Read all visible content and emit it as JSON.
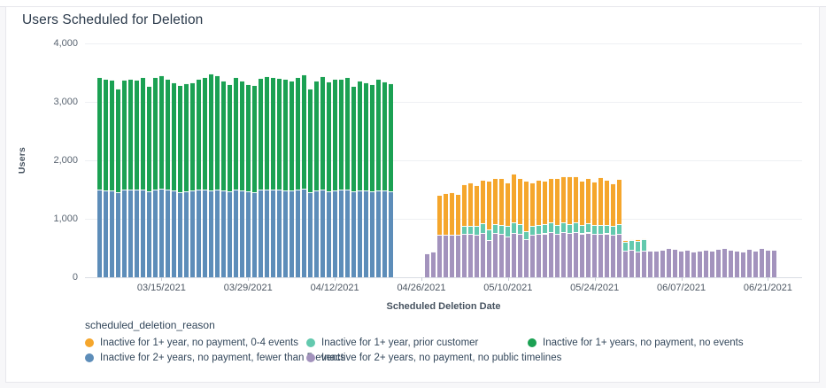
{
  "chart_data": {
    "type": "bar",
    "stacked": true,
    "title": "Users Scheduled for Deletion",
    "xlabel": "Scheduled Deletion Date",
    "ylabel": "Users",
    "legend_title": "scheduled_deletion_reason",
    "y_axis": {
      "max": 4000,
      "ticks": [
        {
          "label": "0",
          "value": 0
        },
        {
          "label": "1,000",
          "value": 1000
        },
        {
          "label": "2,000",
          "value": 2000
        },
        {
          "label": "3,000",
          "value": 3000
        },
        {
          "label": "4,000",
          "value": 4000
        }
      ]
    },
    "x_axis": {
      "start_date": "03/05/2021",
      "end_date": "06/22/2021",
      "ticks": [
        {
          "label": "03/15/2021",
          "day_index": 10
        },
        {
          "label": "03/29/2021",
          "day_index": 24
        },
        {
          "label": "04/12/2021",
          "day_index": 38
        },
        {
          "label": "04/26/2021",
          "day_index": 52
        },
        {
          "label": "05/10/2021",
          "day_index": 66
        },
        {
          "label": "05/24/2021",
          "day_index": 80
        },
        {
          "label": "06/07/2021",
          "day_index": 94
        },
        {
          "label": "06/21/2021",
          "day_index": 108
        }
      ]
    },
    "series": [
      {
        "key": "blue",
        "label": "Inactive for 2+ years, no payment, fewer than 5 events",
        "color": "#5d8db9"
      },
      {
        "key": "purple",
        "label": "Inactive for 2+ years, no payment, no public timelines",
        "color": "#a393bd"
      },
      {
        "key": "teal",
        "label": "Inactive for 1+ year, prior customer",
        "color": "#63c9ae"
      },
      {
        "key": "green",
        "label": "Inactive for 1+ years, no payment, no events",
        "color": "#1ba153"
      },
      {
        "key": "orange",
        "label": "Inactive for 1+ year, no payment, 0-4 events",
        "color": "#f5a62c"
      }
    ],
    "legend_order": [
      "orange",
      "blue",
      "teal",
      "purple",
      "green"
    ],
    "columns": [
      "date",
      "blue",
      "purple",
      "teal",
      "green",
      "orange"
    ],
    "rows": [
      [
        "03/05/2021",
        1500,
        0,
        0,
        1920,
        0
      ],
      [
        "03/06/2021",
        1490,
        0,
        0,
        1900,
        0
      ],
      [
        "03/07/2021",
        1480,
        0,
        0,
        1900,
        0
      ],
      [
        "03/08/2021",
        1455,
        0,
        0,
        1775,
        0
      ],
      [
        "03/09/2021",
        1500,
        0,
        0,
        1880,
        0
      ],
      [
        "03/10/2021",
        1505,
        0,
        0,
        1895,
        0
      ],
      [
        "03/11/2021",
        1500,
        0,
        0,
        1880,
        0
      ],
      [
        "03/12/2021",
        1495,
        0,
        0,
        1925,
        0
      ],
      [
        "03/13/2021",
        1465,
        0,
        0,
        1815,
        0
      ],
      [
        "03/14/2021",
        1500,
        0,
        0,
        1930,
        0
      ],
      [
        "03/15/2021",
        1510,
        0,
        0,
        1950,
        0
      ],
      [
        "03/16/2021",
        1495,
        0,
        0,
        1895,
        0
      ],
      [
        "03/17/2021",
        1480,
        0,
        0,
        1860,
        0
      ],
      [
        "03/18/2021",
        1460,
        0,
        0,
        1830,
        0
      ],
      [
        "03/19/2021",
        1470,
        0,
        0,
        1850,
        0
      ],
      [
        "03/20/2021",
        1480,
        0,
        0,
        1855,
        0
      ],
      [
        "03/21/2021",
        1500,
        0,
        0,
        1900,
        0
      ],
      [
        "03/22/2021",
        1505,
        0,
        0,
        1915,
        0
      ],
      [
        "03/23/2021",
        1490,
        0,
        0,
        1990,
        0
      ],
      [
        "03/24/2021",
        1500,
        0,
        0,
        1950,
        0
      ],
      [
        "03/25/2021",
        1480,
        0,
        0,
        1890,
        0
      ],
      [
        "03/26/2021",
        1465,
        0,
        0,
        1845,
        0
      ],
      [
        "03/27/2021",
        1495,
        0,
        0,
        1925,
        0
      ],
      [
        "03/28/2021",
        1485,
        0,
        0,
        1875,
        0
      ],
      [
        "03/29/2021",
        1470,
        0,
        0,
        1830,
        0
      ],
      [
        "03/30/2021",
        1460,
        0,
        0,
        1830,
        0
      ],
      [
        "03/31/2021",
        1500,
        0,
        0,
        1910,
        0
      ],
      [
        "04/01/2021",
        1505,
        0,
        0,
        1935,
        0
      ],
      [
        "04/02/2021",
        1500,
        0,
        0,
        1930,
        0
      ],
      [
        "04/03/2021",
        1495,
        0,
        0,
        1915,
        0
      ],
      [
        "04/04/2021",
        1490,
        0,
        0,
        1900,
        0
      ],
      [
        "04/05/2021",
        1485,
        0,
        0,
        1875,
        0
      ],
      [
        "04/06/2021",
        1500,
        0,
        0,
        1920,
        0
      ],
      [
        "04/07/2021",
        1510,
        0,
        0,
        1960,
        0
      ],
      [
        "04/08/2021",
        1455,
        0,
        0,
        1775,
        0
      ],
      [
        "04/09/2021",
        1480,
        0,
        0,
        1890,
        0
      ],
      [
        "04/10/2021",
        1500,
        0,
        0,
        1940,
        0
      ],
      [
        "04/11/2021",
        1475,
        0,
        0,
        1875,
        0
      ],
      [
        "04/12/2021",
        1490,
        0,
        0,
        1900,
        0
      ],
      [
        "04/13/2021",
        1495,
        0,
        0,
        1905,
        0
      ],
      [
        "04/14/2021",
        1500,
        0,
        0,
        1920,
        0
      ],
      [
        "04/15/2021",
        1465,
        0,
        0,
        1815,
        0
      ],
      [
        "04/16/2021",
        1485,
        0,
        0,
        1875,
        0
      ],
      [
        "04/17/2021",
        1480,
        0,
        0,
        1860,
        0
      ],
      [
        "04/18/2021",
        1470,
        0,
        0,
        1840,
        0
      ],
      [
        "04/19/2021",
        1490,
        0,
        0,
        1910,
        0
      ],
      [
        "04/20/2021",
        1480,
        0,
        0,
        1870,
        0
      ],
      [
        "04/21/2021",
        1475,
        0,
        0,
        1845,
        0
      ],
      [
        "04/22/2021",
        0,
        0,
        0,
        0,
        0
      ],
      [
        "04/23/2021",
        0,
        0,
        0,
        0,
        0
      ],
      [
        "04/24/2021",
        0,
        0,
        0,
        0,
        0
      ],
      [
        "04/25/2021",
        0,
        0,
        0,
        0,
        0
      ],
      [
        "04/26/2021",
        0,
        0,
        0,
        0,
        0
      ],
      [
        "04/27/2021",
        0,
        410,
        0,
        0,
        0
      ],
      [
        "04/28/2021",
        0,
        440,
        0,
        0,
        0
      ],
      [
        "04/29/2021",
        0,
        725,
        0,
        0,
        680
      ],
      [
        "04/30/2021",
        0,
        730,
        0,
        0,
        705
      ],
      [
        "05/01/2021",
        0,
        725,
        0,
        0,
        730
      ],
      [
        "05/02/2021",
        0,
        720,
        0,
        0,
        710
      ],
      [
        "05/03/2021",
        0,
        735,
        150,
        0,
        700
      ],
      [
        "05/04/2021",
        0,
        740,
        145,
        0,
        735
      ],
      [
        "05/05/2021",
        0,
        725,
        160,
        0,
        685
      ],
      [
        "05/06/2021",
        0,
        760,
        170,
        0,
        740
      ],
      [
        "05/07/2021",
        0,
        640,
        185,
        0,
        820
      ],
      [
        "05/08/2021",
        0,
        755,
        160,
        0,
        780
      ],
      [
        "05/09/2021",
        0,
        740,
        150,
        0,
        810
      ],
      [
        "05/10/2021",
        0,
        700,
        175,
        0,
        745
      ],
      [
        "05/11/2021",
        0,
        760,
        180,
        0,
        830
      ],
      [
        "05/12/2021",
        0,
        745,
        165,
        0,
        790
      ],
      [
        "05/13/2021",
        0,
        655,
        140,
        0,
        850
      ],
      [
        "05/14/2021",
        0,
        730,
        150,
        0,
        735
      ],
      [
        "05/15/2021",
        0,
        740,
        160,
        0,
        770
      ],
      [
        "05/16/2021",
        0,
        750,
        155,
        0,
        745
      ],
      [
        "05/17/2021",
        0,
        770,
        165,
        0,
        760
      ],
      [
        "05/18/2021",
        0,
        745,
        150,
        0,
        805
      ],
      [
        "05/19/2021",
        0,
        780,
        160,
        0,
        790
      ],
      [
        "05/20/2021",
        0,
        760,
        145,
        0,
        815
      ],
      [
        "05/21/2021",
        0,
        775,
        160,
        0,
        790
      ],
      [
        "05/22/2021",
        0,
        750,
        140,
        0,
        760
      ],
      [
        "05/23/2021",
        0,
        765,
        155,
        0,
        775
      ],
      [
        "05/24/2021",
        0,
        740,
        150,
        0,
        745
      ],
      [
        "05/25/2021",
        0,
        735,
        160,
        0,
        820
      ],
      [
        "05/26/2021",
        0,
        750,
        145,
        0,
        775
      ],
      [
        "05/27/2021",
        0,
        725,
        155,
        0,
        730
      ],
      [
        "05/28/2021",
        0,
        745,
        160,
        0,
        770
      ],
      [
        "05/29/2021",
        0,
        450,
        160,
        0,
        25
      ],
      [
        "05/30/2021",
        0,
        465,
        170,
        0,
        20
      ],
      [
        "05/31/2021",
        0,
        445,
        175,
        0,
        25
      ],
      [
        "06/01/2021",
        0,
        460,
        185,
        0,
        25
      ],
      [
        "06/02/2021",
        0,
        450,
        0,
        0,
        0
      ],
      [
        "06/03/2021",
        0,
        455,
        0,
        0,
        0
      ],
      [
        "06/04/2021",
        0,
        470,
        0,
        0,
        0
      ],
      [
        "06/05/2021",
        0,
        495,
        0,
        0,
        0
      ],
      [
        "06/06/2021",
        0,
        480,
        0,
        0,
        0
      ],
      [
        "06/07/2021",
        0,
        460,
        0,
        0,
        0
      ],
      [
        "06/08/2021",
        0,
        475,
        0,
        0,
        0
      ],
      [
        "06/09/2021",
        0,
        445,
        0,
        0,
        0
      ],
      [
        "06/10/2021",
        0,
        455,
        0,
        0,
        0
      ],
      [
        "06/11/2021",
        0,
        470,
        0,
        0,
        0
      ],
      [
        "06/12/2021",
        0,
        450,
        0,
        0,
        0
      ],
      [
        "06/13/2021",
        0,
        485,
        0,
        0,
        0
      ],
      [
        "06/14/2021",
        0,
        500,
        0,
        0,
        0
      ],
      [
        "06/15/2021",
        0,
        475,
        0,
        0,
        0
      ],
      [
        "06/16/2021",
        0,
        455,
        0,
        0,
        0
      ],
      [
        "06/17/2021",
        0,
        445,
        0,
        0,
        0
      ],
      [
        "06/18/2021",
        0,
        480,
        0,
        0,
        0
      ],
      [
        "06/19/2021",
        0,
        455,
        0,
        0,
        0
      ],
      [
        "06/20/2021",
        0,
        505,
        0,
        0,
        0
      ],
      [
        "06/21/2021",
        0,
        465,
        0,
        0,
        0
      ],
      [
        "06/22/2021",
        0,
        475,
        0,
        0,
        0
      ]
    ]
  }
}
